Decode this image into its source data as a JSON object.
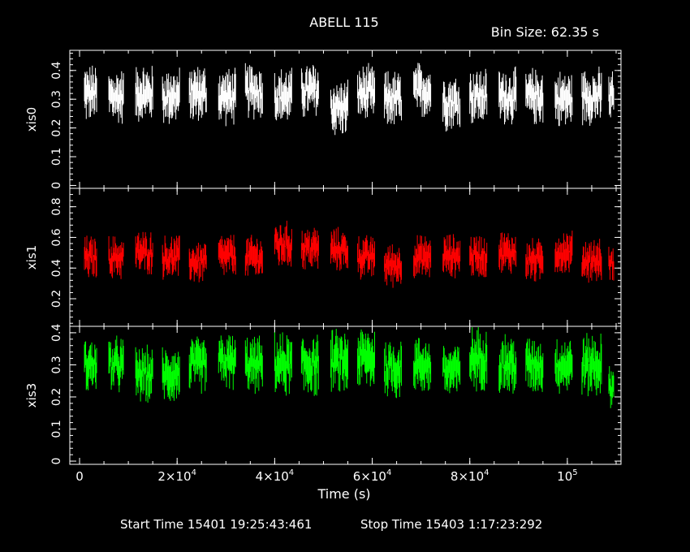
{
  "header": {
    "title": "ABELL 115",
    "bin_size": "Bin Size: 62.35 s"
  },
  "footer": {
    "start": "Start Time 15401 19:25:43:461",
    "stop": "Stop Time 15403  1:17:23:292"
  },
  "colors": {
    "background": "#000000",
    "frame": "#ffffff",
    "xis0": "#ffffff",
    "xis1": "#ff0000",
    "xis3": "#00ff00"
  },
  "chart_data": {
    "type": "scatter",
    "title": "ABELL 115",
    "xlabel": "Time (s)",
    "xlim": [
      -2000,
      111000
    ],
    "x_ticks": [
      {
        "value": 0,
        "label": "0"
      },
      {
        "value": 20000,
        "label": "2×10",
        "exp": "4"
      },
      {
        "value": 40000,
        "label": "4×10",
        "exp": "4"
      },
      {
        "value": 60000,
        "label": "6×10",
        "exp": "4"
      },
      {
        "value": 80000,
        "label": "8×10",
        "exp": "4"
      },
      {
        "value": 100000,
        "label": "10",
        "exp": "5"
      }
    ],
    "panels": [
      {
        "name": "xis0",
        "color": "#ffffff",
        "ylim": [
          -0.01,
          0.47
        ],
        "y_ticks": [
          0,
          0.1,
          0.2,
          0.3,
          0.4
        ],
        "y_tick_labels": [
          "0",
          "0.1",
          "0.2",
          "0.3",
          "0.4"
        ],
        "segments": [
          {
            "start": 1000,
            "end": 3500,
            "level": 0.32,
            "spread": 0.09
          },
          {
            "start": 6000,
            "end": 9000,
            "level": 0.31,
            "spread": 0.09
          },
          {
            "start": 11500,
            "end": 15000,
            "level": 0.32,
            "spread": 0.09
          },
          {
            "start": 17000,
            "end": 20500,
            "level": 0.31,
            "spread": 0.09
          },
          {
            "start": 22500,
            "end": 26000,
            "level": 0.32,
            "spread": 0.09
          },
          {
            "start": 28500,
            "end": 32000,
            "level": 0.31,
            "spread": 0.09
          },
          {
            "start": 34000,
            "end": 37500,
            "level": 0.33,
            "spread": 0.09
          },
          {
            "start": 40000,
            "end": 43500,
            "level": 0.31,
            "spread": 0.09
          },
          {
            "start": 45500,
            "end": 49000,
            "level": 0.33,
            "spread": 0.09
          },
          {
            "start": 51500,
            "end": 55000,
            "level": 0.27,
            "spread": 0.09
          },
          {
            "start": 57000,
            "end": 60500,
            "level": 0.32,
            "spread": 0.09
          },
          {
            "start": 62500,
            "end": 66000,
            "level": 0.3,
            "spread": 0.09
          },
          {
            "start": 68500,
            "end": 72000,
            "level": 0.33,
            "spread": 0.09
          },
          {
            "start": 74500,
            "end": 78000,
            "level": 0.29,
            "spread": 0.09
          },
          {
            "start": 80000,
            "end": 83500,
            "level": 0.31,
            "spread": 0.09
          },
          {
            "start": 86000,
            "end": 89500,
            "level": 0.31,
            "spread": 0.09
          },
          {
            "start": 91500,
            "end": 95000,
            "level": 0.31,
            "spread": 0.09
          },
          {
            "start": 97500,
            "end": 101000,
            "level": 0.3,
            "spread": 0.09
          },
          {
            "start": 103000,
            "end": 107000,
            "level": 0.31,
            "spread": 0.09
          },
          {
            "start": 108500,
            "end": 109500,
            "level": 0.31,
            "spread": 0.09
          }
        ]
      },
      {
        "name": "xis1",
        "color": "#ff0000",
        "ylim": [
          0.02,
          0.92
        ],
        "y_ticks": [
          0.2,
          0.4,
          0.6,
          0.8
        ],
        "y_tick_labels": [
          "0.2",
          "0.4",
          "0.6",
          "0.8"
        ],
        "segments": [
          {
            "start": 1000,
            "end": 3500,
            "level": 0.47,
            "spread": 0.13
          },
          {
            "start": 6000,
            "end": 9000,
            "level": 0.47,
            "spread": 0.13
          },
          {
            "start": 11500,
            "end": 15000,
            "level": 0.5,
            "spread": 0.13
          },
          {
            "start": 17000,
            "end": 20500,
            "level": 0.47,
            "spread": 0.13
          },
          {
            "start": 22500,
            "end": 26000,
            "level": 0.44,
            "spread": 0.13
          },
          {
            "start": 28500,
            "end": 32000,
            "level": 0.48,
            "spread": 0.13
          },
          {
            "start": 34000,
            "end": 37500,
            "level": 0.47,
            "spread": 0.13
          },
          {
            "start": 40000,
            "end": 43500,
            "level": 0.55,
            "spread": 0.14
          },
          {
            "start": 45500,
            "end": 49000,
            "level": 0.53,
            "spread": 0.13
          },
          {
            "start": 51500,
            "end": 55000,
            "level": 0.52,
            "spread": 0.13
          },
          {
            "start": 57000,
            "end": 60500,
            "level": 0.47,
            "spread": 0.13
          },
          {
            "start": 62500,
            "end": 66000,
            "level": 0.42,
            "spread": 0.13
          },
          {
            "start": 68500,
            "end": 72000,
            "level": 0.47,
            "spread": 0.13
          },
          {
            "start": 74500,
            "end": 78000,
            "level": 0.48,
            "spread": 0.13
          },
          {
            "start": 80000,
            "end": 83500,
            "level": 0.48,
            "spread": 0.13
          },
          {
            "start": 86000,
            "end": 89500,
            "level": 0.5,
            "spread": 0.13
          },
          {
            "start": 91500,
            "end": 95000,
            "level": 0.45,
            "spread": 0.13
          },
          {
            "start": 97500,
            "end": 101000,
            "level": 0.5,
            "spread": 0.13
          },
          {
            "start": 103000,
            "end": 107000,
            "level": 0.45,
            "spread": 0.13
          },
          {
            "start": 108500,
            "end": 109500,
            "level": 0.43,
            "spread": 0.1
          }
        ]
      },
      {
        "name": "xis3",
        "color": "#00ff00",
        "ylim": [
          -0.01,
          0.42
        ],
        "y_ticks": [
          0,
          0.1,
          0.2,
          0.3,
          0.4
        ],
        "y_tick_labels": [
          "0",
          "0.1",
          "0.2",
          "0.3",
          "0.4"
        ],
        "segments": [
          {
            "start": 1000,
            "end": 3500,
            "level": 0.3,
            "spread": 0.08
          },
          {
            "start": 6000,
            "end": 9000,
            "level": 0.3,
            "spread": 0.08
          },
          {
            "start": 11500,
            "end": 15000,
            "level": 0.27,
            "spread": 0.08
          },
          {
            "start": 17000,
            "end": 20500,
            "level": 0.27,
            "spread": 0.08
          },
          {
            "start": 22500,
            "end": 26000,
            "level": 0.3,
            "spread": 0.08
          },
          {
            "start": 28500,
            "end": 32000,
            "level": 0.31,
            "spread": 0.08
          },
          {
            "start": 34000,
            "end": 37500,
            "level": 0.3,
            "spread": 0.08
          },
          {
            "start": 40000,
            "end": 43500,
            "level": 0.3,
            "spread": 0.09
          },
          {
            "start": 45500,
            "end": 49000,
            "level": 0.3,
            "spread": 0.09
          },
          {
            "start": 51500,
            "end": 55000,
            "level": 0.31,
            "spread": 0.09
          },
          {
            "start": 57000,
            "end": 60500,
            "level": 0.32,
            "spread": 0.09
          },
          {
            "start": 62500,
            "end": 66000,
            "level": 0.29,
            "spread": 0.09
          },
          {
            "start": 68500,
            "end": 72000,
            "level": 0.3,
            "spread": 0.08
          },
          {
            "start": 74500,
            "end": 78000,
            "level": 0.28,
            "spread": 0.08
          },
          {
            "start": 80000,
            "end": 83500,
            "level": 0.32,
            "spread": 0.09
          },
          {
            "start": 86000,
            "end": 89500,
            "level": 0.3,
            "spread": 0.09
          },
          {
            "start": 91500,
            "end": 95000,
            "level": 0.3,
            "spread": 0.08
          },
          {
            "start": 97500,
            "end": 101000,
            "level": 0.3,
            "spread": 0.08
          },
          {
            "start": 103000,
            "end": 107000,
            "level": 0.3,
            "spread": 0.09
          },
          {
            "start": 108500,
            "end": 109500,
            "level": 0.23,
            "spread": 0.06
          }
        ]
      }
    ]
  }
}
